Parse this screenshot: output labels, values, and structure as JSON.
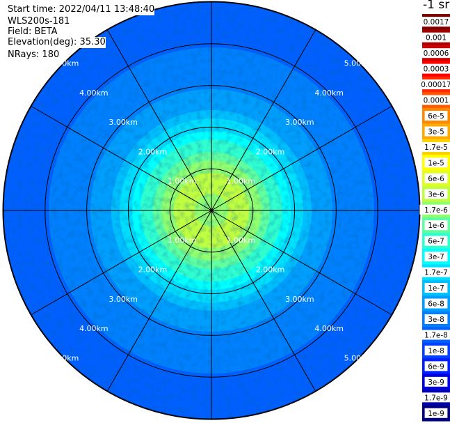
{
  "header": {
    "start_time": "Start time: 2022/04/11 13:48:40",
    "instrument": "WLS200s-181",
    "field": "Field: BETA",
    "elevation": "Elevation(deg): 35.30",
    "nrays": "NRays: 180"
  },
  "chart_data": {
    "type": "heatmap",
    "projection": "polar-ppi",
    "field": "BETA",
    "units_label": "-1 sr",
    "range_rings_km": [
      1,
      2,
      3,
      4,
      5
    ],
    "range_ring_labels": [
      "1.00km",
      "2.00km",
      "3.00km",
      "4.00km",
      "5.00km"
    ],
    "max_range_km": 5.0,
    "nrays": 180,
    "azimuth_spokes_deg": [
      0,
      30,
      60,
      90,
      120,
      150,
      180,
      210,
      240,
      270,
      300,
      330
    ],
    "radial_profile": {
      "range_km": [
        0.0,
        0.5,
        1.0,
        1.5,
        2.0,
        2.5,
        3.0,
        4.0,
        5.0
      ],
      "beta": [
        1.7e-06,
        3e-06,
        3e-06,
        1e-06,
        3e-07,
        1e-07,
        6e-08,
        3e-08,
        1.7e-08
      ]
    },
    "colorbar": {
      "labels": [
        "0.0017",
        "0.001",
        "0.0006",
        "0.0003",
        "0.00017",
        "0.0001",
        "6e-5",
        "3e-5",
        "1.7e-5",
        "1e-5",
        "6e-6",
        "3e-6",
        "1.7e-6",
        "1e-6",
        "6e-7",
        "3e-7",
        "1.7e-7",
        "1e-7",
        "6e-8",
        "3e-8",
        "1.7e-8",
        "1e-8",
        "6e-9",
        "3e-9",
        "1.7e-9",
        "1e-9"
      ],
      "colors": [
        "#7a0000",
        "#a80000",
        "#d40000",
        "#ff0000",
        "#ff2a00",
        "#ff5a00",
        "#ff8800",
        "#ffaa00",
        "#ffd200",
        "#ffff00",
        "#e0ff20",
        "#c0ff40",
        "#90ff70",
        "#60ffa0",
        "#30ffd0",
        "#00ffff",
        "#00dfff",
        "#00bfff",
        "#009fff",
        "#0080ff",
        "#0060ff",
        "#0040ff",
        "#0020ff",
        "#0000e0",
        "#0000b0",
        "#000080"
      ]
    }
  }
}
